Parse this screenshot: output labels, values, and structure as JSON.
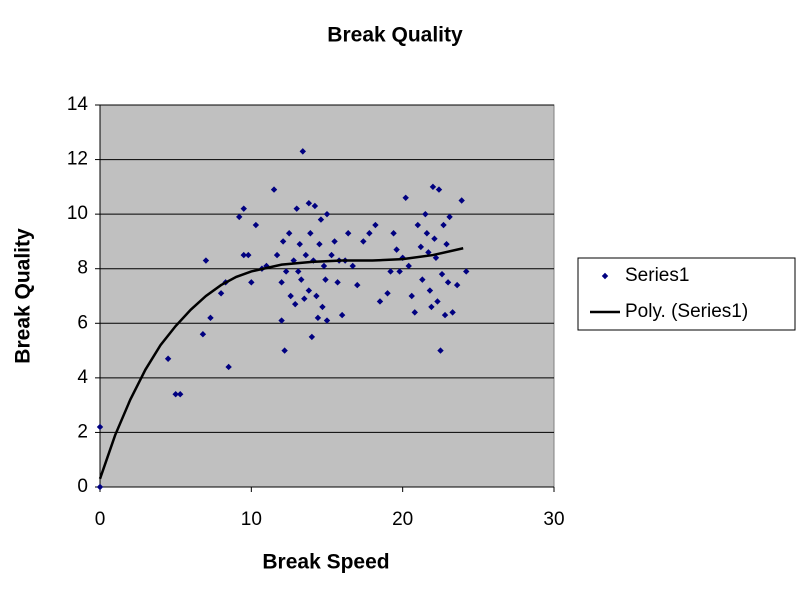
{
  "chart_data": {
    "type": "scatter",
    "title": "Break Quality",
    "x_label": "Break Speed",
    "y_label": "Break Quality",
    "xlim": [
      0,
      30
    ],
    "xticks": [
      0,
      10,
      20,
      30
    ],
    "ylim": [
      0,
      14
    ],
    "yticks": [
      0,
      2,
      4,
      6,
      8,
      10,
      12,
      14
    ],
    "grid": true,
    "legend": "right",
    "background": "#c0c0c0",
    "series": [
      {
        "name": "Series1",
        "style": "marker",
        "color": "#000080",
        "x": [
          0,
          0,
          4.5,
          5,
          5.3,
          6.8,
          7,
          7.3,
          8,
          8.3,
          8.5,
          9.2,
          9.5,
          9.5,
          9.8,
          10,
          10.3,
          10.7,
          11,
          11.5,
          11.7,
          12,
          12,
          12.1,
          12.2,
          12.3,
          12.5,
          12.6,
          12.8,
          12.9,
          13,
          13.1,
          13.2,
          13.3,
          13.4,
          13.5,
          13.6,
          13.8,
          13.8,
          13.9,
          14,
          14.1,
          14.2,
          14.3,
          14.4,
          14.5,
          14.6,
          14.7,
          14.8,
          14.9,
          15,
          15,
          15.3,
          15.5,
          15.7,
          15.8,
          16,
          16.2,
          16.4,
          16.7,
          17,
          17.4,
          17.8,
          18.2,
          18.5,
          19,
          19.2,
          19.4,
          19.6,
          19.8,
          20,
          20.2,
          20.4,
          20.6,
          20.8,
          21,
          21.2,
          21.3,
          21.5,
          21.6,
          21.7,
          21.8,
          21.9,
          22,
          22.1,
          22.2,
          22.3,
          22.4,
          22.5,
          22.6,
          22.7,
          22.8,
          22.9,
          23,
          23.1,
          23.3,
          23.6,
          23.9,
          24.2
        ],
        "values": [
          2.2,
          0,
          4.7,
          3.4,
          3.4,
          5.6,
          8.3,
          6.2,
          7.1,
          7.5,
          4.4,
          9.9,
          10.2,
          8.5,
          8.5,
          7.5,
          9.6,
          8,
          8.1,
          10.9,
          8.5,
          7.5,
          6.1,
          9,
          5,
          7.9,
          9.3,
          7,
          8.3,
          6.7,
          10.2,
          7.9,
          8.9,
          7.6,
          12.3,
          6.9,
          8.5,
          10.4,
          7.2,
          9.3,
          5.5,
          8.3,
          10.3,
          7,
          6.2,
          8.9,
          9.8,
          6.6,
          8.1,
          7.6,
          10,
          6.1,
          8.5,
          9,
          7.5,
          8.3,
          6.3,
          8.3,
          9.3,
          8.1,
          7.4,
          9,
          9.3,
          9.6,
          6.8,
          7.1,
          7.9,
          9.3,
          8.7,
          7.9,
          8.4,
          10.6,
          8.1,
          7,
          6.4,
          9.6,
          8.8,
          7.6,
          10,
          9.3,
          8.6,
          7.2,
          6.6,
          11,
          9.1,
          8.4,
          6.8,
          10.9,
          5,
          7.8,
          9.6,
          6.3,
          8.9,
          7.5,
          9.9,
          6.4,
          7.4,
          10.5,
          7.9
        ]
      },
      {
        "name": "Poly. (Series1)",
        "style": "line",
        "color": "#000000",
        "x": [
          0,
          1,
          2,
          3,
          4,
          5,
          6,
          7,
          8,
          9,
          10,
          12,
          14,
          16,
          18,
          20,
          22,
          24
        ],
        "values": [
          0.3,
          1.9,
          3.2,
          4.3,
          5.2,
          5.9,
          6.5,
          7.0,
          7.4,
          7.7,
          7.9,
          8.15,
          8.25,
          8.3,
          8.3,
          8.35,
          8.5,
          8.75
        ]
      }
    ]
  }
}
